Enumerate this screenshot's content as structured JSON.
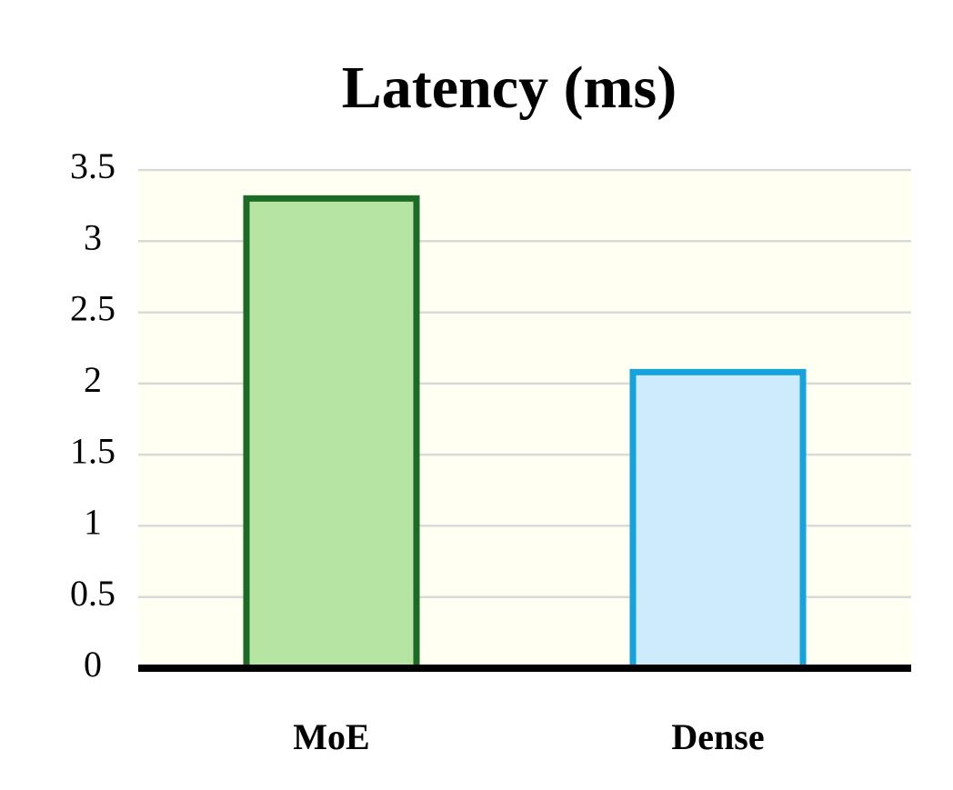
{
  "chart_data": {
    "type": "bar",
    "title": "Latency (ms)",
    "categories": [
      "MoE",
      "Dense"
    ],
    "values": [
      3.3,
      2.08
    ],
    "colors": [
      "#b5e4a3",
      "#cdebfa"
    ],
    "edgecolors": [
      "#1b6b27",
      "#16a3dc"
    ],
    "background": "#fffff2",
    "ylim": [
      0,
      3.5
    ],
    "yticks": [
      0,
      0.5,
      1,
      1.5,
      2,
      2.5,
      3,
      3.5
    ],
    "grid": true
  }
}
